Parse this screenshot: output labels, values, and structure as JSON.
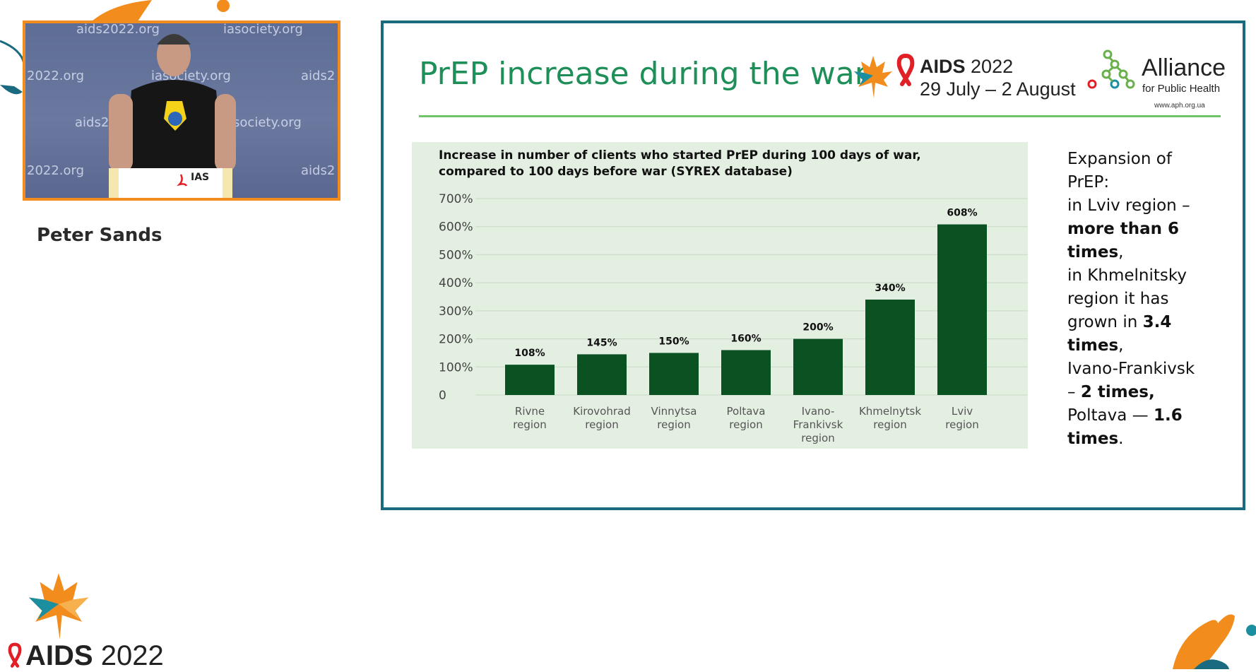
{
  "speaker": {
    "name": "Peter Sands",
    "watermarks": [
      "aids2022.org",
      "iasociety.org",
      "2022.org",
      "iasociety.org",
      "aids2",
      "aids20",
      "iasociety.org",
      "2022.org",
      "rg",
      "aids2"
    ],
    "podium_label": "IAS"
  },
  "slide": {
    "title": "PrEP increase during the war",
    "conference": {
      "name_bold": "AIDS",
      "name_year": "2022",
      "dates": "29 July – 2 August"
    },
    "partner": {
      "name": "Alliance",
      "subtitle": "for Public Health",
      "url": "www.aph.org.ua"
    },
    "side_text": {
      "l1": "Expansion of",
      "l2": "PrEP:",
      "l3": "in Lviv region –",
      "l4": "more than 6",
      "l5": "times",
      "l5b": ",",
      "l6": "in Khmelnitsky",
      "l7": "region it has",
      "l8a": "grown in ",
      "l8b": "3.4",
      "l9": "times",
      "l9b": ",",
      "l10": "Ivano-Frankivsk",
      "l11a": "– ",
      "l11b": "2 times,",
      "l12a": "Poltava — ",
      "l12b": "1.6",
      "l13": "times",
      "l13b": "."
    }
  },
  "chart_data": {
    "type": "bar",
    "title": "Increase in number of clients who started PrEP during 100 days of war, compared to 100 days before war (SYREX database)",
    "categories": [
      "Rivne region",
      "Kirovohrad region",
      "Vinnytsa region",
      "Poltava region",
      "Ivano-Frankivsk region",
      "Khmelnytsk region",
      "Lviv region"
    ],
    "category_lines": [
      [
        "Rivne",
        "region"
      ],
      [
        "Kirovohrad",
        "region"
      ],
      [
        "Vinnytsa",
        "region"
      ],
      [
        "Poltava",
        "region"
      ],
      [
        "Ivano-",
        "Frankivsk",
        "region"
      ],
      [
        "Khmelnytsk",
        "region"
      ],
      [
        "Lviv",
        "region"
      ]
    ],
    "values": [
      108,
      145,
      150,
      160,
      200,
      340,
      608
    ],
    "value_labels": [
      "108%",
      "145%",
      "150%",
      "160%",
      "200%",
      "340%",
      "608%"
    ],
    "yticks": [
      "0",
      "100%",
      "200%",
      "300%",
      "400%",
      "500%",
      "600%",
      "700%"
    ],
    "ylim": [
      0,
      700
    ],
    "grid": true,
    "bar_color": "#0b5223"
  },
  "footer": {
    "event_bold": "AIDS",
    "event_year": "2022"
  }
}
